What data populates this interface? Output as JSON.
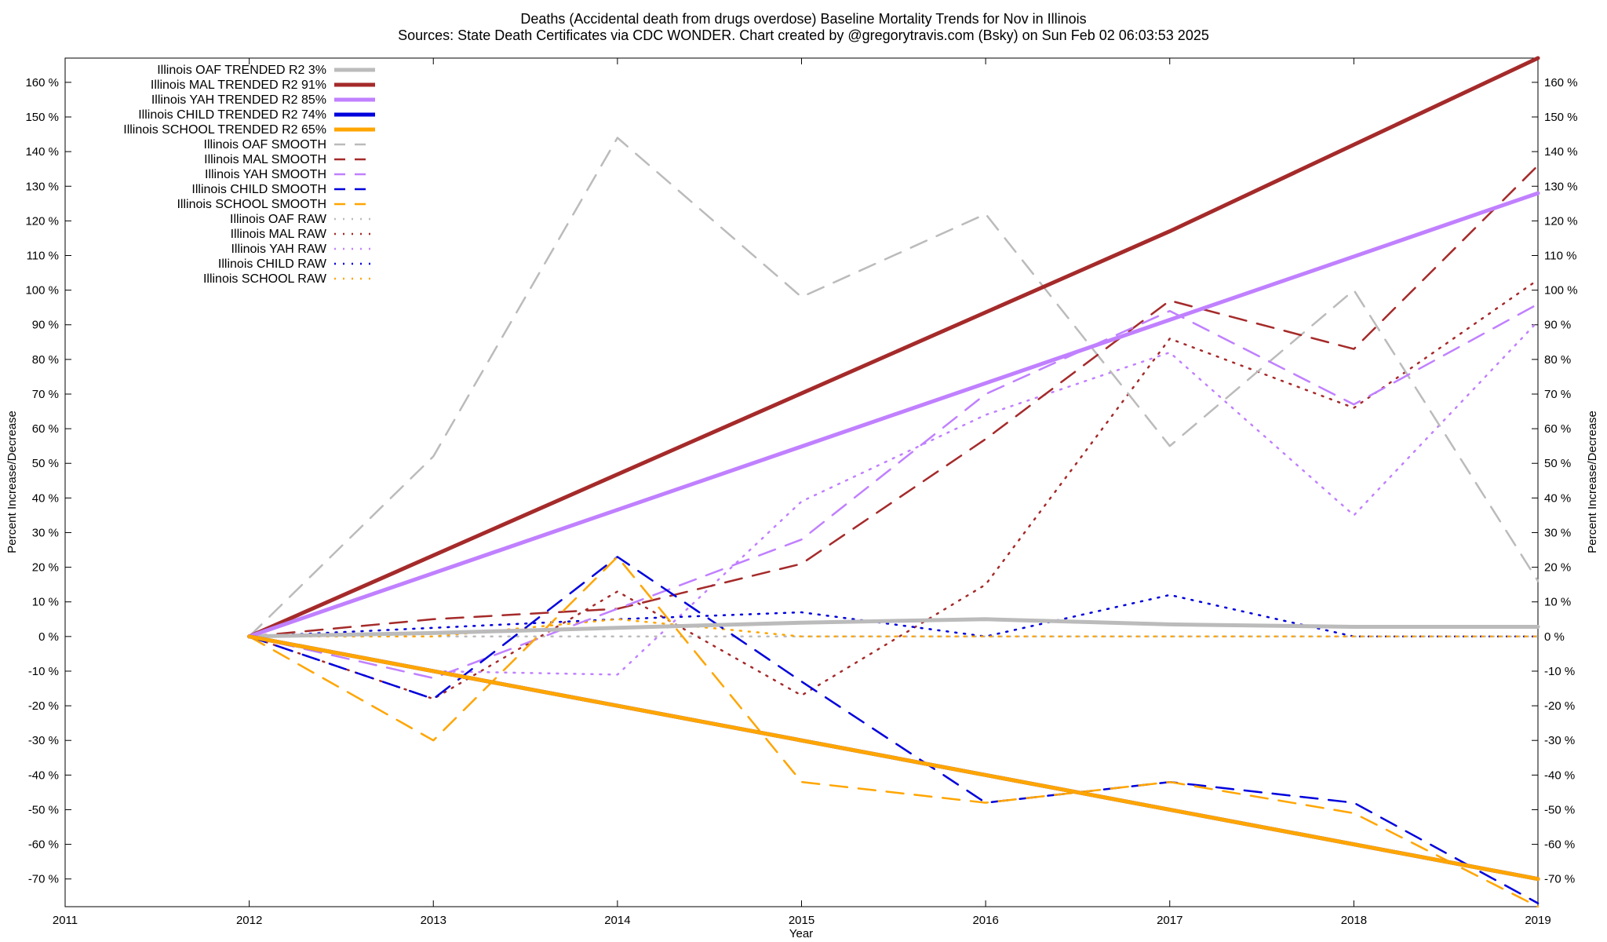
{
  "chart_data": {
    "type": "line",
    "title_line1": "Deaths (Accidental death from drugs overdose)  Baseline Mortality Trends for Nov in Illinois",
    "title_line2": "Sources: State Death Certificates via CDC WONDER.              Chart created by @gregorytravis.com (Bsky) on Sun Feb 02 06:03:53 2025",
    "xlabel": "Year",
    "ylabel": "Percent Increase/Decrease",
    "xlim": [
      2011,
      2019
    ],
    "ylim": [
      -78,
      167
    ],
    "x_ticks": [
      "2011",
      "2012",
      "2013",
      "2014",
      "2015",
      "2016",
      "2017",
      "2018",
      "2019"
    ],
    "y_ticks": [
      "160 %",
      "150 %",
      "140 %",
      "130 %",
      "120 %",
      "110 %",
      "100 %",
      "90 %",
      "80 %",
      "70 %",
      "60 %",
      "50 %",
      "40 %",
      "30 %",
      "20 %",
      "10 %",
      "0 %",
      "-10 %",
      "-20 %",
      "-30 %",
      "-40 %",
      "-50 %",
      "-60 %",
      "-70 %"
    ],
    "grid": false,
    "legend_position": "top-left",
    "series": [
      {
        "name": "Illinois OAF TRENDED R2  3%",
        "color": "#bbbbbb",
        "style": "trend",
        "x": [
          2012,
          2013,
          2014,
          2015,
          2016,
          2017,
          2018,
          2019
        ],
        "y": [
          0,
          1,
          2.5,
          4,
          5,
          3.5,
          2.8,
          2.8
        ]
      },
      {
        "name": "Illinois MAL TRENDED R2  91%",
        "color": "#a52a2a",
        "style": "trend",
        "x": [
          2012,
          2017,
          2019
        ],
        "y": [
          0,
          117,
          167
        ]
      },
      {
        "name": "Illinois YAH TRENDED R2  85%",
        "color": "#c080ff",
        "style": "trend",
        "x": [
          2012,
          2019
        ],
        "y": [
          0,
          128
        ]
      },
      {
        "name": "Illinois CHILD TRENDED R2  74%",
        "color": "#0000dd",
        "style": "trend",
        "x": [
          2012,
          2019
        ],
        "y": [
          0,
          -70
        ]
      },
      {
        "name": "Illinois SCHOOL TRENDED R2  65%",
        "color": "#ffa500",
        "style": "trend",
        "x": [
          2012,
          2019
        ],
        "y": [
          0,
          -70
        ]
      },
      {
        "name": "Illinois OAF SMOOTH",
        "color": "#bbbbbb",
        "style": "smooth",
        "x": [
          2012,
          2013,
          2014,
          2015,
          2016,
          2017,
          2018,
          2019
        ],
        "y": [
          0,
          52,
          144,
          98,
          122,
          55,
          100,
          16
        ]
      },
      {
        "name": "Illinois MAL SMOOTH",
        "color": "#a52a2a",
        "style": "smooth",
        "x": [
          2012,
          2013,
          2014,
          2015,
          2016,
          2017,
          2018,
          2019
        ],
        "y": [
          0,
          5,
          8,
          21,
          57,
          97,
          83,
          136
        ]
      },
      {
        "name": "Illinois YAH SMOOTH",
        "color": "#c080ff",
        "style": "smooth",
        "x": [
          2012,
          2013,
          2014,
          2015,
          2016,
          2017,
          2018,
          2019
        ],
        "y": [
          0,
          -12,
          8,
          28,
          70,
          94,
          67,
          96
        ]
      },
      {
        "name": "Illinois CHILD SMOOTH",
        "color": "#0000dd",
        "style": "smooth",
        "x": [
          2012,
          2013,
          2014,
          2015,
          2016,
          2017,
          2018,
          2019
        ],
        "y": [
          0,
          -18,
          23,
          -13,
          -48,
          -42,
          -48,
          -77
        ]
      },
      {
        "name": "Illinois SCHOOL SMOOTH",
        "color": "#ffa500",
        "style": "smooth",
        "x": [
          2012,
          2013,
          2014,
          2015,
          2016,
          2017,
          2018,
          2019
        ],
        "y": [
          0,
          -30,
          23,
          -42,
          -48,
          -42,
          -51,
          -78
        ]
      },
      {
        "name": "Illinois OAF RAW",
        "color": "#bbbbbb",
        "style": "raw",
        "x": [
          2012,
          2013,
          2014,
          2015,
          2016,
          2017,
          2018,
          2019
        ],
        "y": [
          0,
          0,
          0,
          0,
          0,
          0,
          0,
          0
        ]
      },
      {
        "name": "Illinois MAL RAW",
        "color": "#a52a2a",
        "style": "raw",
        "x": [
          2012,
          2013,
          2014,
          2015,
          2016,
          2017,
          2018,
          2019
        ],
        "y": [
          0,
          -18,
          13,
          -17,
          15,
          86,
          66,
          103
        ]
      },
      {
        "name": "Illinois YAH RAW",
        "color": "#c080ff",
        "style": "raw",
        "x": [
          2012,
          2013,
          2014,
          2015,
          2016,
          2017,
          2018,
          2019
        ],
        "y": [
          0,
          -10,
          -11,
          39,
          64,
          82,
          35,
          91
        ]
      },
      {
        "name": "Illinois CHILD RAW",
        "color": "#0000dd",
        "style": "raw",
        "x": [
          2012,
          2013,
          2014,
          2015,
          2016,
          2017,
          2018,
          2019
        ],
        "y": [
          0,
          2.5,
          5,
          7,
          0,
          12,
          0,
          0
        ]
      },
      {
        "name": "Illinois SCHOOL RAW",
        "color": "#ffa500",
        "style": "raw",
        "x": [
          2012,
          2013,
          2014,
          2015,
          2016,
          2017,
          2018,
          2019
        ],
        "y": [
          0,
          0,
          5,
          0,
          0,
          0,
          0,
          0
        ]
      }
    ]
  }
}
